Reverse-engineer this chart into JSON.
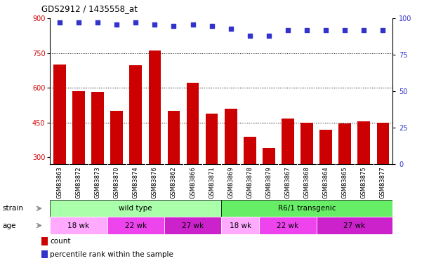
{
  "title": "GDS2912 / 1435558_at",
  "samples": [
    "GSM83863",
    "GSM83872",
    "GSM83873",
    "GSM83870",
    "GSM83874",
    "GSM83876",
    "GSM83862",
    "GSM83866",
    "GSM83871",
    "GSM83869",
    "GSM83878",
    "GSM83879",
    "GSM83867",
    "GSM83868",
    "GSM83864",
    "GSM83865",
    "GSM83875",
    "GSM83877"
  ],
  "counts": [
    700,
    585,
    582,
    500,
    698,
    762,
    500,
    622,
    490,
    510,
    388,
    340,
    468,
    450,
    418,
    447,
    455,
    450
  ],
  "percentiles": [
    97,
    97,
    97,
    96,
    97,
    96,
    95,
    96,
    95,
    93,
    88,
    88,
    92,
    92,
    92,
    92,
    92,
    92
  ],
  "bar_color": "#cc0000",
  "dot_color": "#3333cc",
  "ylim_left": [
    270,
    900
  ],
  "ylim_right": [
    0,
    100
  ],
  "yticks_left": [
    300,
    450,
    600,
    750,
    900
  ],
  "yticks_right": [
    0,
    25,
    50,
    75,
    100
  ],
  "grid_values": [
    450,
    600,
    750
  ],
  "strain_labels": [
    {
      "label": "wild type",
      "start": 0,
      "end": 9,
      "color": "#aaffaa"
    },
    {
      "label": "R6/1 transgenic",
      "start": 9,
      "end": 18,
      "color": "#66ee66"
    }
  ],
  "age_groups": [
    {
      "label": "18 wk",
      "start": 0,
      "end": 3,
      "color": "#ffaaff"
    },
    {
      "label": "22 wk",
      "start": 3,
      "end": 6,
      "color": "#ee44ee"
    },
    {
      "label": "27 wk",
      "start": 6,
      "end": 9,
      "color": "#cc22cc"
    },
    {
      "label": "18 wk",
      "start": 9,
      "end": 11,
      "color": "#ffaaff"
    },
    {
      "label": "22 wk",
      "start": 11,
      "end": 14,
      "color": "#ee44ee"
    },
    {
      "label": "27 wk",
      "start": 14,
      "end": 18,
      "color": "#cc22cc"
    }
  ],
  "xticklabel_bg": "#cccccc",
  "legend_count_color": "#cc0000",
  "legend_pct_color": "#3333cc",
  "strain_arrow_color": "#888888",
  "age_arrow_color": "#888888"
}
